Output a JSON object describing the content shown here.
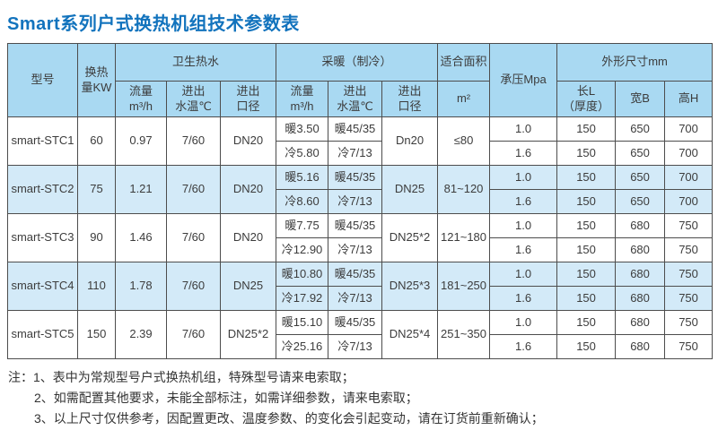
{
  "title": "Smart系列户式换热机组技术参数表",
  "table": {
    "header": {
      "model": "型号",
      "capacity": "换热\n量KW",
      "dhw_group": "卫生热水",
      "heating_group": "采暖（制冷）",
      "area_group": "适合面积",
      "pressure": "承压Mpa",
      "dimensions_group": "外形尺寸mm",
      "dhw_flow": "流量\nm³/h",
      "dhw_temp": "进出\n水温℃",
      "dhw_diameter": "进出\n口径",
      "heat_flow": "流量\nm³/h",
      "heat_temp": "进出\n水温℃",
      "heat_diameter": "进出\n口径",
      "area_unit": "m²",
      "length": "长L\n（厚度）",
      "width": "宽B",
      "height": "高H"
    },
    "rows": [
      {
        "model": "smart-STC1",
        "capacity": "60",
        "dhw_flow": "0.97",
        "dhw_temp": "7/60",
        "dhw_diameter": "DN20",
        "heat_flow_warm": "暖3.50",
        "heat_flow_cool": "冷5.80",
        "heat_temp_warm": "暖45/35",
        "heat_temp_cool": "冷7/13",
        "heat_diameter": "Dn20",
        "area": "≤80",
        "sub": [
          {
            "pressure": "1.0",
            "length": "150",
            "width": "650",
            "height": "700"
          },
          {
            "pressure": "1.6",
            "length": "150",
            "width": "650",
            "height": "700"
          }
        ]
      },
      {
        "model": "smart-STC2",
        "capacity": "75",
        "dhw_flow": "1.21",
        "dhw_temp": "7/60",
        "dhw_diameter": "DN20",
        "heat_flow_warm": "暖5.16",
        "heat_flow_cool": "冷8.60",
        "heat_temp_warm": "暖45/35",
        "heat_temp_cool": "冷7/13",
        "heat_diameter": "DN25",
        "area": "81~120",
        "sub": [
          {
            "pressure": "1.0",
            "length": "150",
            "width": "650",
            "height": "700"
          },
          {
            "pressure": "1.6",
            "length": "150",
            "width": "650",
            "height": "700"
          }
        ]
      },
      {
        "model": "smart-STC3",
        "capacity": "90",
        "dhw_flow": "1.46",
        "dhw_temp": "7/60",
        "dhw_diameter": "DN20",
        "heat_flow_warm": "暖7.75",
        "heat_flow_cool": "冷12.90",
        "heat_temp_warm": "暖45/35",
        "heat_temp_cool": "冷7/13",
        "heat_diameter": "DN25*2",
        "area": "121~180",
        "sub": [
          {
            "pressure": "1.0",
            "length": "150",
            "width": "680",
            "height": "750"
          },
          {
            "pressure": "1.6",
            "length": "150",
            "width": "680",
            "height": "750"
          }
        ]
      },
      {
        "model": "smart-STC4",
        "capacity": "110",
        "dhw_flow": "1.78",
        "dhw_temp": "7/60",
        "dhw_diameter": "DN25",
        "heat_flow_warm": "暖10.80",
        "heat_flow_cool": "冷17.92",
        "heat_temp_warm": "暖45/35",
        "heat_temp_cool": "冷7/13",
        "heat_diameter": "DN25*3",
        "area": "181~250",
        "sub": [
          {
            "pressure": "1.0",
            "length": "150",
            "width": "680",
            "height": "750"
          },
          {
            "pressure": "1.6",
            "length": "150",
            "width": "680",
            "height": "750"
          }
        ]
      },
      {
        "model": "smart-STC5",
        "capacity": "150",
        "dhw_flow": "2.39",
        "dhw_temp": "7/60",
        "dhw_diameter": "DN25*2",
        "heat_flow_warm": "暖15.10",
        "heat_flow_cool": "冷25.16",
        "heat_temp_warm": "暖45/35",
        "heat_temp_cool": "冷7/13",
        "heat_diameter": "DN25*4",
        "area": "251~350",
        "sub": [
          {
            "pressure": "1.0",
            "length": "150",
            "width": "680",
            "height": "750"
          },
          {
            "pressure": "1.6",
            "length": "150",
            "width": "680",
            "height": "750"
          }
        ]
      }
    ]
  },
  "notes": {
    "line1": "注：1、表中为常规型号户式换热机组，特殊型号请来电索取；",
    "line2": "2、如需配置其他要求，未能全部标注，如需详细参数，请来电索取；",
    "line3": "3、以上尺寸仅供参考，因配置更改、温度参数、的变化会引起变动，请在订货前重新确认；"
  },
  "colors": {
    "title": "#1273bd",
    "header_bg": "#a9d9f2",
    "alt_row_bg": "#d3eaf8",
    "border": "#4d4d4d"
  }
}
